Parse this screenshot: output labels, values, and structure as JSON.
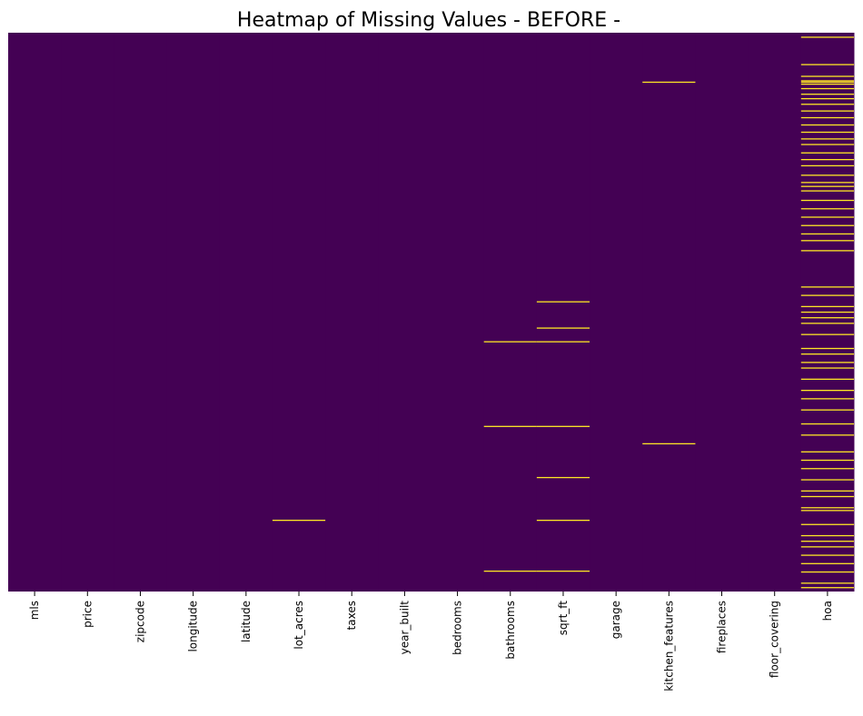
{
  "chart_data": {
    "type": "heatmap",
    "title": "Heatmap of Missing Values - BEFORE -",
    "xlabel": "",
    "ylabel": "",
    "columns": [
      "mls",
      "price",
      "zipcode",
      "longitude",
      "latitude",
      "lot_acres",
      "taxes",
      "year_built",
      "bedrooms",
      "bathrooms",
      "sqrt_ft",
      "garage",
      "kitchen_features",
      "fireplaces",
      "floor_covering",
      "hoa"
    ],
    "value_meaning": {
      "0": "present",
      "1": "missing"
    },
    "colors": {
      "present": "#440154",
      "missing": "#fde725",
      "tick": "#000000",
      "background": "#ffffff"
    },
    "row_range": [
      0,
      1
    ],
    "colorbar": false,
    "y_ticks": false,
    "missing": [
      {
        "column": "lot_acres",
        "rows": [
          0.8725
        ]
      },
      {
        "column": "bathrooms",
        "rows": [
          0.553,
          0.7045,
          0.9635
        ]
      },
      {
        "column": "sqrt_ft",
        "rows": [
          0.4815,
          0.5285,
          0.553,
          0.7045,
          0.796,
          0.8725,
          0.9635
        ]
      },
      {
        "column": "kitchen_features",
        "rows": [
          0.0885,
          0.7355
        ]
      },
      {
        "column": "hoa",
        "rows": [
          0.008,
          0.057,
          0.078,
          0.086,
          0.0885,
          0.092,
          0.1,
          0.11,
          0.118,
          0.128,
          0.14,
          0.152,
          0.165,
          0.178,
          0.19,
          0.2,
          0.215,
          0.227,
          0.238,
          0.255,
          0.268,
          0.275,
          0.283,
          0.3,
          0.315,
          0.33,
          0.345,
          0.36,
          0.372,
          0.39,
          0.455,
          0.47,
          0.49,
          0.5,
          0.51,
          0.52,
          0.54,
          0.565,
          0.575,
          0.59,
          0.6,
          0.62,
          0.64,
          0.655,
          0.675,
          0.7,
          0.72,
          0.75,
          0.765,
          0.78,
          0.8,
          0.82,
          0.83,
          0.85,
          0.855,
          0.88,
          0.9,
          0.91,
          0.92,
          0.935,
          0.95,
          0.965,
          0.985,
          0.993
        ]
      }
    ]
  }
}
